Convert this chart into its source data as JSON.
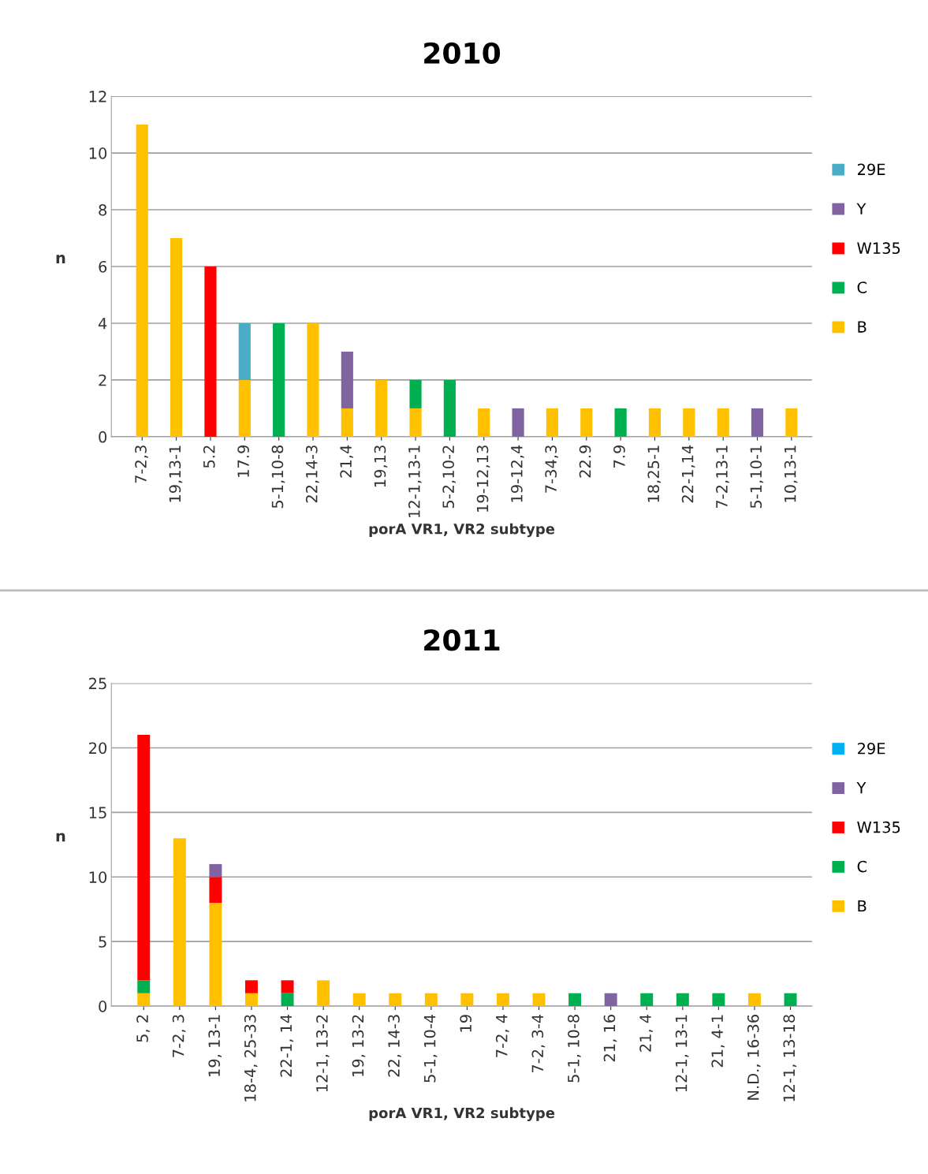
{
  "chart_data": [
    {
      "type": "bar",
      "title": "2010",
      "xlabel": "porA VR1, VR2 subtype",
      "ylabel": "n",
      "stacked": true,
      "grid": "y",
      "legend": "right",
      "ylim": [
        0,
        12
      ],
      "yticks": [
        0,
        2,
        4,
        6,
        8,
        10,
        12
      ],
      "categories": [
        "7-2,3",
        "19,13-1",
        "5.2",
        "17.9",
        "5-1,10-8",
        "22,14-3",
        "21,4",
        "19,13",
        "12-1,13-1",
        "5-2,10-2",
        "19-12,13",
        "19-12,4",
        "7-34,3",
        "22.9",
        "7.9",
        "18,25-1",
        "22-1,14",
        "7-2,13-1",
        "5-1,10-1",
        "10,13-1"
      ],
      "series": [
        {
          "name": "B",
          "color": "#ffc000",
          "values": [
            11,
            7,
            null,
            2,
            null,
            4,
            1,
            2,
            1,
            null,
            1,
            null,
            1,
            1,
            null,
            1,
            1,
            1,
            null,
            1
          ]
        },
        {
          "name": "C",
          "color": "#00b050",
          "values": [
            null,
            null,
            null,
            null,
            4,
            null,
            null,
            null,
            1,
            2,
            null,
            null,
            null,
            null,
            1,
            null,
            null,
            null,
            null,
            null
          ]
        },
        {
          "name": "W135",
          "color": "#ff0000",
          "values": [
            null,
            null,
            6,
            null,
            null,
            null,
            null,
            null,
            null,
            null,
            null,
            null,
            null,
            null,
            null,
            null,
            null,
            null,
            null,
            null
          ]
        },
        {
          "name": "Y",
          "color": "#8064a2",
          "values": [
            null,
            null,
            null,
            null,
            null,
            null,
            2,
            null,
            null,
            null,
            null,
            1,
            null,
            null,
            null,
            null,
            null,
            null,
            1,
            null
          ]
        },
        {
          "name": "29E",
          "color": "#4bacc6",
          "values": [
            null,
            null,
            null,
            2,
            null,
            null,
            null,
            null,
            null,
            null,
            null,
            null,
            null,
            null,
            null,
            null,
            null,
            null,
            null,
            null
          ]
        }
      ]
    },
    {
      "type": "bar",
      "title": "2011",
      "xlabel": "porA VR1, VR2 subtype",
      "ylabel": "n",
      "stacked": true,
      "grid": "y",
      "legend": "right",
      "ylim": [
        0,
        25
      ],
      "yticks": [
        0,
        5,
        10,
        15,
        20,
        25
      ],
      "categories": [
        "5, 2",
        "7-2, 3",
        "19, 13-1",
        "18-4, 25-33",
        "22-1, 14",
        "12-1, 13-2",
        "19, 13-2",
        "22, 14-3",
        "5-1, 10-4",
        "19",
        "7-2, 4",
        "7-2, 3-4",
        "5-1, 10-8",
        "21, 16",
        "21, 4",
        "12-1, 13-1",
        "21, 4-1",
        "N.D., 16-36",
        "12-1, 13-18"
      ],
      "series": [
        {
          "name": "B",
          "color": "#ffc000",
          "values": [
            1,
            13,
            8,
            1,
            null,
            2,
            1,
            1,
            1,
            1,
            1,
            1,
            null,
            null,
            null,
            null,
            null,
            1,
            null
          ]
        },
        {
          "name": "C",
          "color": "#00b050",
          "values": [
            1,
            null,
            null,
            null,
            1,
            null,
            null,
            null,
            null,
            null,
            null,
            null,
            1,
            null,
            1,
            1,
            1,
            null,
            1
          ]
        },
        {
          "name": "W135",
          "color": "#ff0000",
          "values": [
            19,
            null,
            2,
            1,
            1,
            null,
            null,
            null,
            null,
            null,
            null,
            null,
            null,
            null,
            null,
            null,
            null,
            null,
            null
          ]
        },
        {
          "name": "Y",
          "color": "#8064a2",
          "values": [
            null,
            null,
            1,
            null,
            null,
            null,
            null,
            null,
            null,
            null,
            null,
            null,
            null,
            1,
            null,
            null,
            null,
            null,
            null
          ]
        },
        {
          "name": "29E",
          "color": "#00b0f0",
          "values": [
            null,
            null,
            null,
            null,
            null,
            null,
            null,
            null,
            null,
            null,
            null,
            null,
            null,
            null,
            null,
            null,
            null,
            null,
            null
          ]
        }
      ]
    }
  ]
}
